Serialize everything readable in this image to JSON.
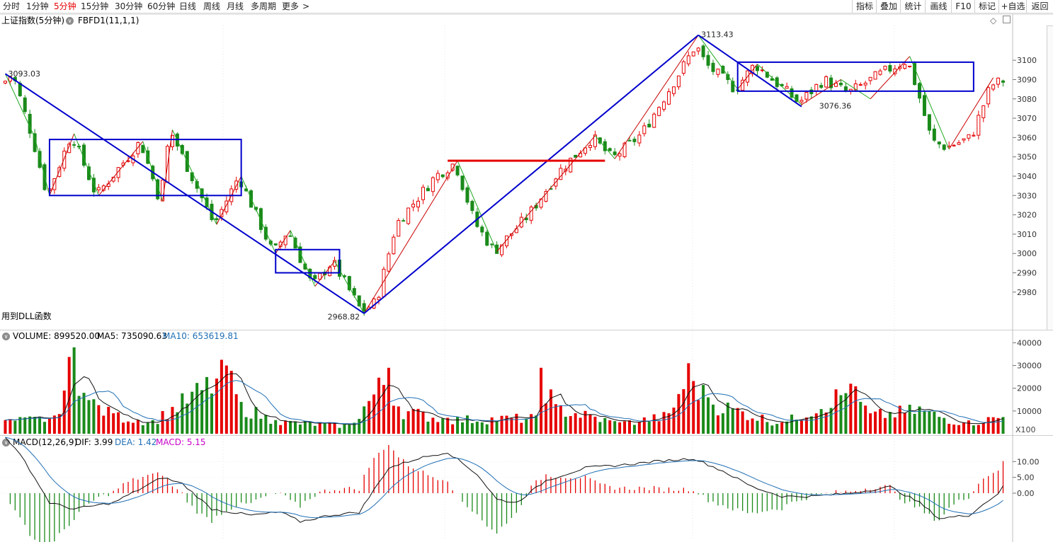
{
  "tabs": [
    {
      "label": "分时",
      "active": false
    },
    {
      "label": "1分钟",
      "active": false
    },
    {
      "label": "5分钟",
      "active": true
    },
    {
      "label": "15分钟",
      "active": false
    },
    {
      "label": "30分钟",
      "active": false
    },
    {
      "label": "60分钟",
      "active": false
    },
    {
      "label": "日线",
      "active": false
    },
    {
      "label": "周线",
      "active": false
    },
    {
      "label": "月线",
      "active": false
    },
    {
      "label": "多周期",
      "active": false
    },
    {
      "label": "更多",
      "active": false
    }
  ],
  "more_arrow": ">",
  "right_buttons": [
    "指标",
    "叠加",
    "统计",
    "画线",
    "F10",
    "标记",
    "+自选",
    "返回"
  ],
  "main_panel": {
    "title": "上证指数(5分钟)",
    "indicator": "FBFD1(11,1,1)",
    "footer_note": "用到DLL函数",
    "diamond_icon": "◇",
    "y_ticks": [
      {
        "v": 3100,
        "t": "3100"
      },
      {
        "v": 3090,
        "t": "3090"
      },
      {
        "v": 3080,
        "t": "3080"
      },
      {
        "v": 3070,
        "t": "3070"
      },
      {
        "v": 3060,
        "t": "3060"
      },
      {
        "v": 3050,
        "t": "3050"
      },
      {
        "v": 3040,
        "t": "3040"
      },
      {
        "v": 3030,
        "t": "3030"
      },
      {
        "v": 3020,
        "t": "3020"
      },
      {
        "v": 3010,
        "t": "3010"
      },
      {
        "v": 3000,
        "t": "3000"
      },
      {
        "v": 2990,
        "t": "2990"
      },
      {
        "v": 2980,
        "t": "2980"
      }
    ],
    "annotations": [
      {
        "text": "3093.03",
        "x": 0,
        "y": 3093.03
      },
      {
        "text": "3113.43",
        "x": 141,
        "y": 3113.43
      },
      {
        "text": "2968.82",
        "x": 65,
        "y": 2968.82
      },
      {
        "text": "3076.36",
        "x": 165,
        "y": 3076.36
      }
    ]
  },
  "volume_panel": {
    "label": "VOLUME: 899520.00",
    "ma5": "MA5: 735090.63",
    "ma10": "MA10: 653619.81",
    "ma10_color": "#1f6fb5",
    "y_ticks": [
      {
        "v": 40000,
        "t": "40000"
      },
      {
        "v": 30000,
        "t": "30000"
      },
      {
        "v": 20000,
        "t": "20000"
      },
      {
        "v": 10000,
        "t": "10000"
      }
    ],
    "unit": "X100"
  },
  "macd_panel": {
    "label": "MACD(12,26,9)",
    "dif": "DIF: 3.99",
    "dea": "DEA: 1.42",
    "macd": "MACD: 5.15",
    "dea_color": "#1f6fb5",
    "macd_color": "#c800c8",
    "y_ticks": [
      {
        "v": 10,
        "t": "10.00"
      },
      {
        "v": 5,
        "t": "5.00"
      },
      {
        "v": 0,
        "t": "0.00"
      }
    ]
  },
  "chart_data": {
    "type": "candlestick",
    "candle_count": 204,
    "colors": {
      "up": "#e60000",
      "down": "#1a8a1a",
      "pen_up": "#c80000",
      "pen_down": "#22aa22",
      "channel": "#0000cc",
      "level": "#e60000"
    },
    "close_anchors": [
      [
        0,
        3088
      ],
      [
        2,
        3093
      ],
      [
        6,
        3060
      ],
      [
        9,
        3030
      ],
      [
        14,
        3062
      ],
      [
        19,
        3030
      ],
      [
        28,
        3058
      ],
      [
        32,
        3027
      ],
      [
        34,
        3064
      ],
      [
        43,
        3015
      ],
      [
        48,
        3040
      ],
      [
        55,
        3000
      ],
      [
        58,
        3012
      ],
      [
        63,
        2983
      ],
      [
        67,
        2996
      ],
      [
        73,
        2970
      ],
      [
        76,
        2975
      ],
      [
        80,
        3015
      ],
      [
        88,
        3040
      ],
      [
        92,
        3047
      ],
      [
        96,
        3016
      ],
      [
        100,
        3001
      ],
      [
        107,
        3020
      ],
      [
        113,
        3042
      ],
      [
        120,
        3060
      ],
      [
        124,
        3049
      ],
      [
        130,
        3062
      ],
      [
        138,
        3095
      ],
      [
        141,
        3108
      ],
      [
        143,
        3098
      ],
      [
        149,
        3085
      ],
      [
        153,
        3098
      ],
      [
        162,
        3078
      ],
      [
        167,
        3090
      ],
      [
        172,
        3083
      ],
      [
        180,
        3095
      ],
      [
        184,
        3100
      ],
      [
        186,
        3085
      ],
      [
        189,
        3058
      ],
      [
        192,
        3055
      ],
      [
        197,
        3060
      ],
      [
        201,
        3087
      ],
      [
        204,
        3090
      ]
    ],
    "pens": [
      [
        0,
        3093
      ],
      [
        6,
        3060
      ],
      [
        9,
        3030
      ],
      [
        14,
        3062
      ],
      [
        19,
        3030
      ],
      [
        28,
        3058
      ],
      [
        32,
        3027
      ],
      [
        34,
        3064
      ],
      [
        43,
        3015
      ],
      [
        48,
        3040
      ],
      [
        55,
        3000
      ],
      [
        58,
        3012
      ],
      [
        63,
        2983
      ],
      [
        67,
        2996
      ],
      [
        73,
        2969
      ],
      [
        92,
        3048
      ],
      [
        100,
        3001
      ],
      [
        120,
        3061
      ],
      [
        124,
        3049
      ],
      [
        141,
        3113
      ],
      [
        149,
        3085
      ],
      [
        153,
        3098
      ],
      [
        162,
        3077
      ],
      [
        170,
        3090
      ],
      [
        176,
        3080
      ],
      [
        184,
        3102
      ],
      [
        192,
        3054
      ],
      [
        201,
        3091
      ]
    ],
    "channel_lines": [
      [
        [
          0,
          3093
        ],
        [
          73,
          2969
        ]
      ],
      [
        [
          73,
          2969
        ],
        [
          141,
          3113
        ]
      ],
      [
        [
          141,
          3113
        ],
        [
          162,
          3076
        ]
      ]
    ],
    "channel_boxes": [
      {
        "x0": 9,
        "x1": 48,
        "y0": 3030,
        "y1": 3059
      },
      {
        "x0": 55,
        "x1": 68,
        "y0": 2990,
        "y1": 3002
      },
      {
        "x0": 149,
        "x1": 197,
        "y0": 3084,
        "y1": 3099
      }
    ],
    "resistance_level": {
      "x0": 90,
      "x1": 122,
      "y": 3048
    },
    "volume_peaks": [
      [
        0,
        6000
      ],
      [
        10,
        8000
      ],
      [
        14,
        38000
      ],
      [
        16,
        18000
      ],
      [
        22,
        9000
      ],
      [
        30,
        6000
      ],
      [
        45,
        30000
      ],
      [
        48,
        14000
      ],
      [
        55,
        6000
      ],
      [
        70,
        4000
      ],
      [
        78,
        29000
      ],
      [
        80,
        12000
      ],
      [
        90,
        7000
      ],
      [
        108,
        8000
      ],
      [
        109,
        29000
      ],
      [
        112,
        13000
      ],
      [
        125,
        5000
      ],
      [
        135,
        9000
      ],
      [
        139,
        31000
      ],
      [
        143,
        16000
      ],
      [
        158,
        5000
      ],
      [
        172,
        22000
      ],
      [
        176,
        9000
      ],
      [
        186,
        12000
      ],
      [
        195,
        5000
      ],
      [
        204,
        9000
      ]
    ],
    "macd_dif_anchors": [
      [
        0,
        18
      ],
      [
        4,
        10
      ],
      [
        9,
        -3
      ],
      [
        14,
        -5
      ],
      [
        22,
        -3
      ],
      [
        32,
        5
      ],
      [
        36,
        3
      ],
      [
        42,
        -5
      ],
      [
        50,
        -7
      ],
      [
        56,
        -6
      ],
      [
        60,
        -9
      ],
      [
        66,
        -7
      ],
      [
        72,
        -6
      ],
      [
        78,
        8
      ],
      [
        84,
        11
      ],
      [
        90,
        13
      ],
      [
        96,
        6
      ],
      [
        100,
        -2
      ],
      [
        104,
        -3
      ],
      [
        110,
        4
      ],
      [
        118,
        8
      ],
      [
        126,
        9
      ],
      [
        132,
        10
      ],
      [
        140,
        11
      ],
      [
        146,
        7
      ],
      [
        152,
        2
      ],
      [
        158,
        -1
      ],
      [
        164,
        -1
      ],
      [
        172,
        0
      ],
      [
        180,
        2
      ],
      [
        186,
        -3
      ],
      [
        190,
        -8
      ],
      [
        196,
        -7
      ],
      [
        202,
        0
      ],
      [
        204,
        4
      ]
    ]
  }
}
